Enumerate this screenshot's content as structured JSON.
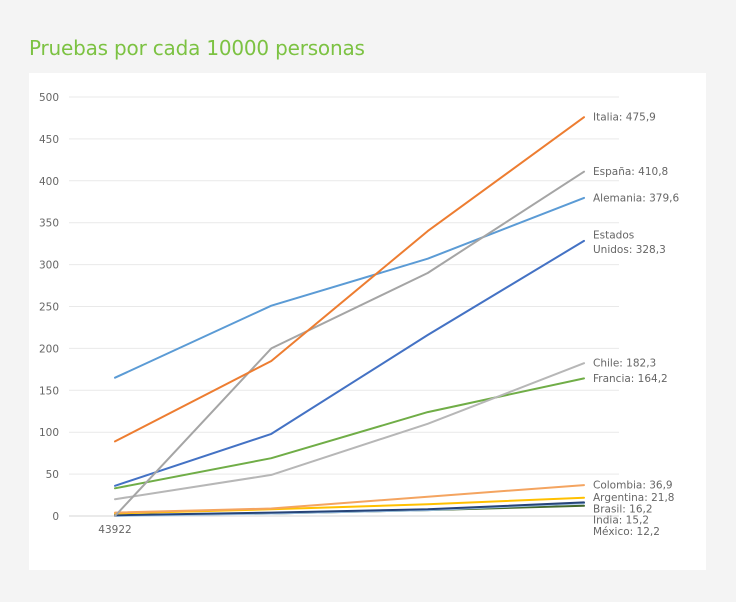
{
  "chart_data": {
    "type": "line",
    "title": "Pruebas por cada 10000 personas",
    "xlabel": "",
    "ylabel": "",
    "x": [
      "43922",
      "",
      "",
      ""
    ],
    "ylim": [
      0,
      500
    ],
    "yticks": [
      0,
      50,
      100,
      150,
      200,
      250,
      300,
      350,
      400,
      450,
      500
    ],
    "grid": true,
    "legend": "end-labels",
    "series": [
      {
        "name": "Italia",
        "label": "Italia: 475,9",
        "color": "#ed7d31",
        "values": [
          89,
          185,
          340,
          475.9
        ]
      },
      {
        "name": "España",
        "label": "España: 410,8",
        "color": "#a5a5a5",
        "values": [
          0,
          200,
          290,
          410.8
        ]
      },
      {
        "name": "Alemania",
        "label": "Alemania: 379,6",
        "color": "#5b9bd5",
        "values": [
          165,
          251,
          307,
          379.6
        ]
      },
      {
        "name": "Estados Unidos",
        "label": "Estados Unidos: 328,3",
        "label_lines": [
          "Estados",
          "Unidos: 328,3"
        ],
        "color": "#4472c4",
        "values": [
          36,
          98,
          216,
          328.3
        ]
      },
      {
        "name": "Chile",
        "label": "Chile: 182,3",
        "color": "#b7b7b7",
        "values": [
          20,
          49,
          110,
          182.3
        ]
      },
      {
        "name": "Francia",
        "label": "Francia: 164,2",
        "color": "#70ad47",
        "values": [
          33,
          69,
          124,
          164.2
        ]
      },
      {
        "name": "Colombia",
        "label": "Colombia: 36,9",
        "color": "#f4a460",
        "values": [
          4,
          9,
          23,
          36.9
        ]
      },
      {
        "name": "Argentina",
        "label": "Argentina: 21,8",
        "color": "#ffc000",
        "values": [
          3,
          8,
          14,
          21.8
        ]
      },
      {
        "name": "Brasil",
        "label": "Brasil: 16,2",
        "color": "#264478",
        "values": [
          1,
          4,
          8,
          16.2
        ]
      },
      {
        "name": "India",
        "label": "India: 15,2",
        "color": "#9dc3e6",
        "values": [
          0,
          3,
          7,
          15.2
        ]
      },
      {
        "name": "México",
        "label": "México: 12,2",
        "color": "#43682b",
        "values": [
          1,
          3,
          7,
          12.2
        ]
      }
    ]
  }
}
